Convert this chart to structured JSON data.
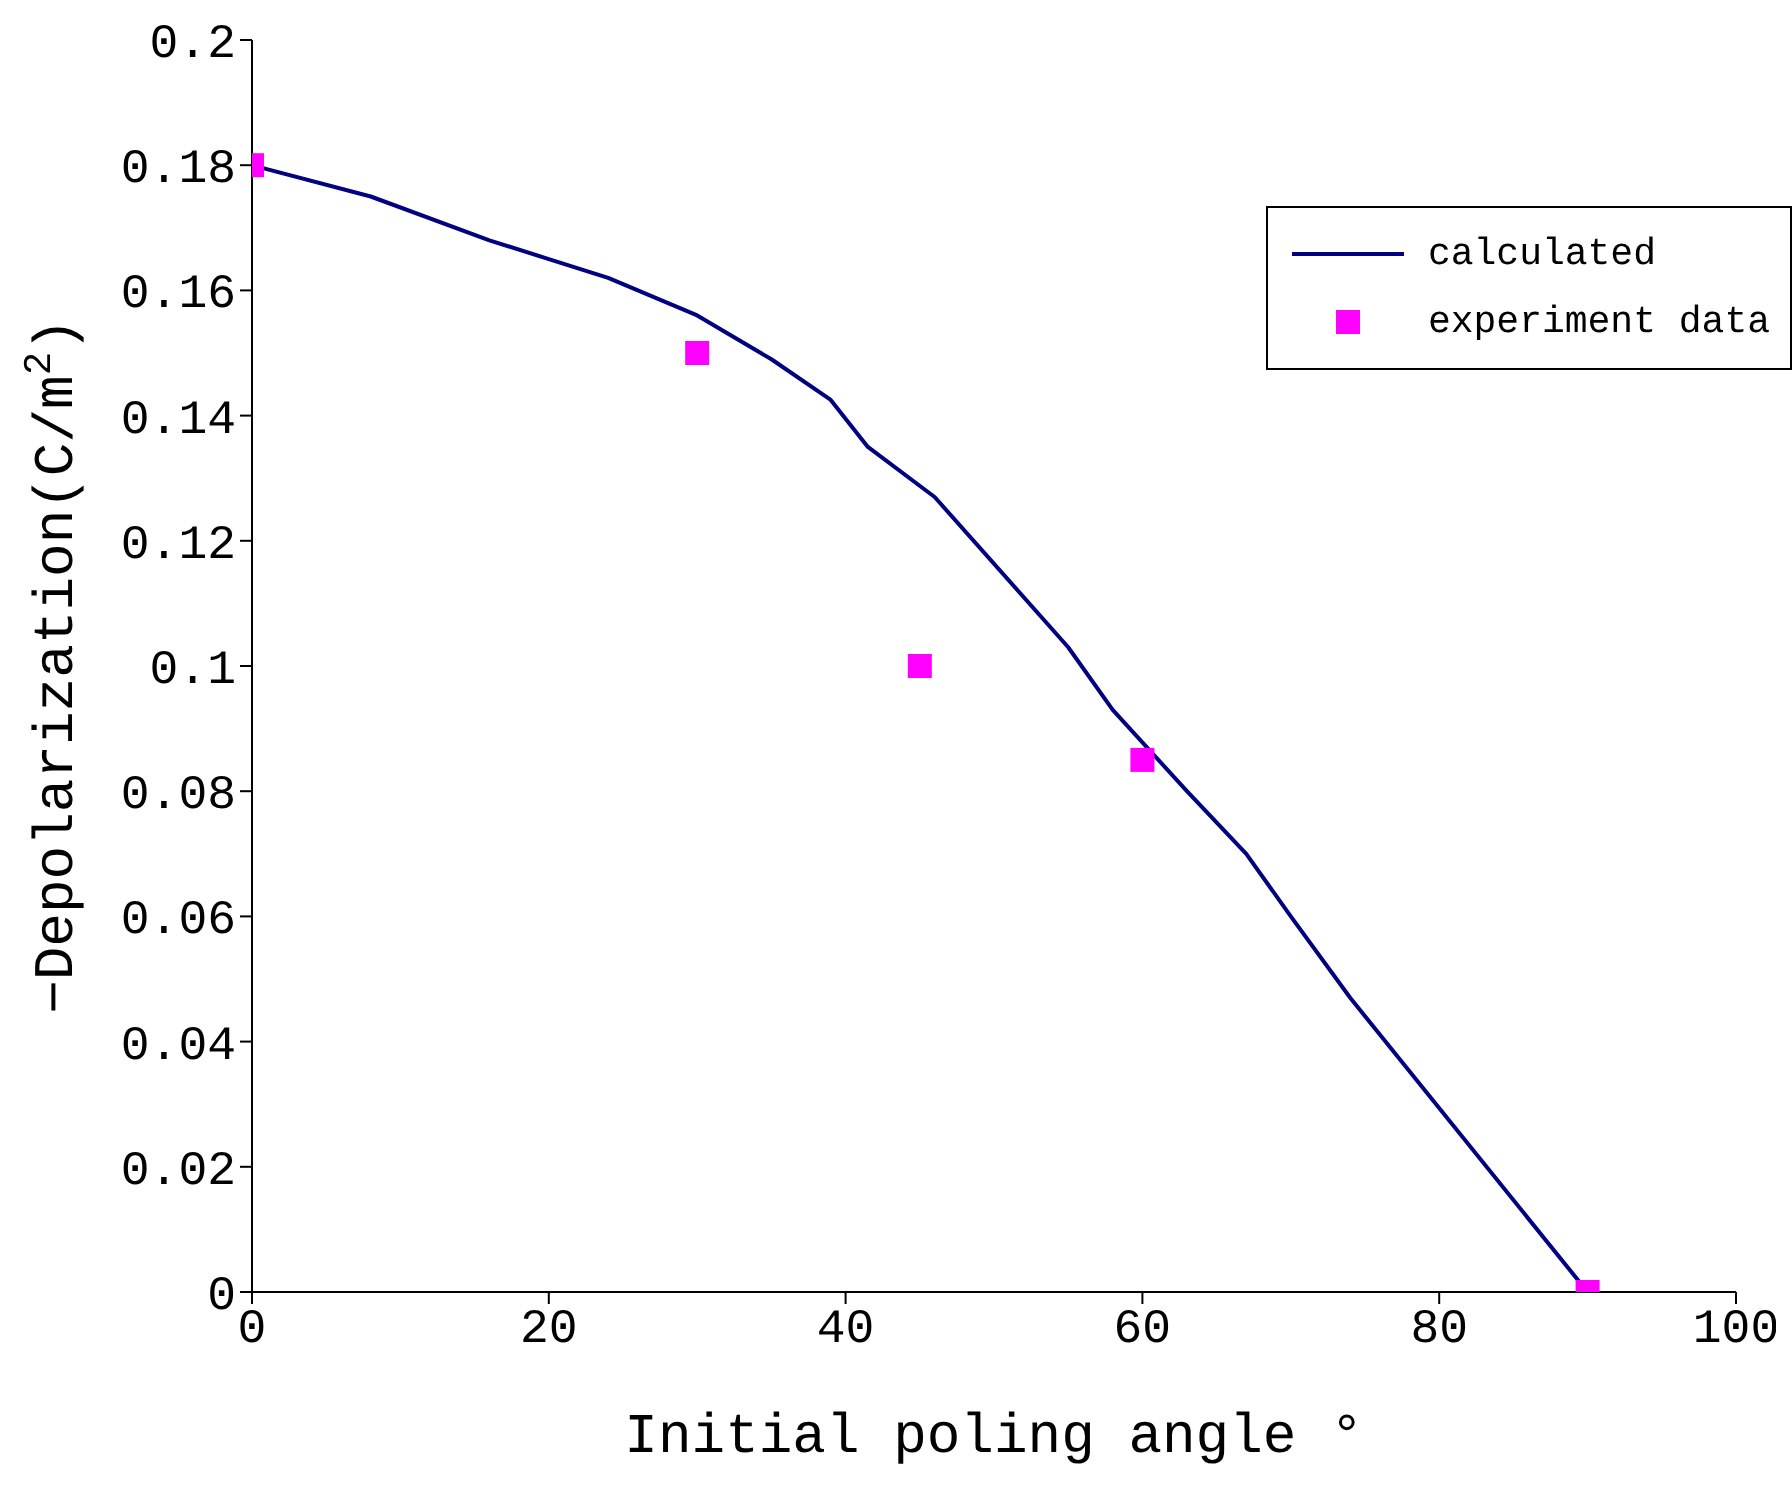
{
  "chart_data": {
    "type": "line",
    "xlabel": "Initial poling angle °",
    "ylabel": "−Depolarization(C/m$^{2}$)",
    "xlim": [
      0,
      100
    ],
    "xticks": [
      0,
      20,
      40,
      60,
      80,
      100
    ],
    "ylim": [
      0,
      0.2
    ],
    "yticks": [
      0,
      0.02,
      0.04,
      0.06,
      0.08,
      0.1,
      0.12,
      0.14,
      0.16,
      0.18,
      0.2
    ],
    "grid": false,
    "legend": "top right",
    "series": [
      {
        "name": "calculated",
        "color": "#000080",
        "marker": "none",
        "line_style": "solid",
        "x": [
          0,
          8,
          16,
          20,
          24,
          30,
          35,
          39,
          41.5,
          46,
          55,
          58,
          63,
          67,
          70,
          74,
          90
        ],
        "values": [
          0.18,
          0.175,
          0.168,
          0.165,
          0.162,
          0.156,
          0.149,
          0.1425,
          0.135,
          0.127,
          0.103,
          0.093,
          0.08,
          0.07,
          0.06,
          0.047,
          0
        ]
      },
      {
        "name": "experiment data",
        "type": "scatter",
        "color": "#ff00ff",
        "marker": "square",
        "x": [
          0,
          30,
          45,
          60,
          90
        ],
        "values": [
          0.18,
          0.15,
          0.1,
          0.085,
          0
        ]
      }
    ]
  }
}
